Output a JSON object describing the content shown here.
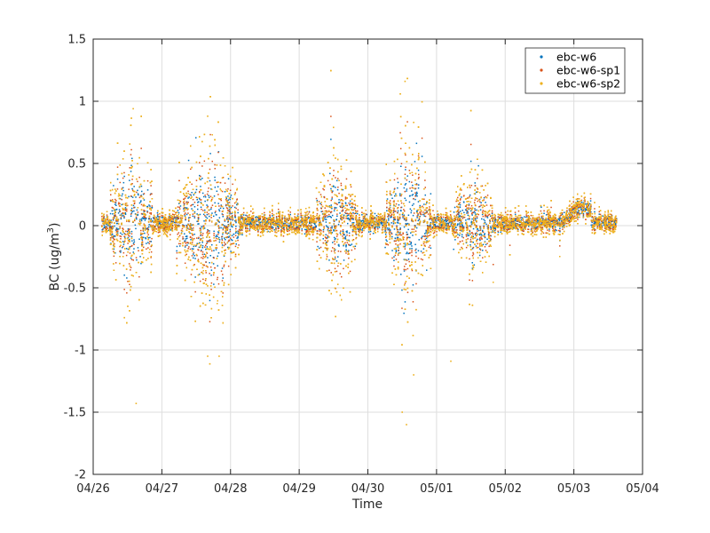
{
  "chart_data": {
    "type": "scatter",
    "xlabel": "Time",
    "ylabel": "BC (ug/m",
    "ylabel_sup": "3",
    "ylabel_close": ")",
    "xlim": [
      "2023-04-26",
      "2023-05-04"
    ],
    "ylim": [
      -2,
      1.5
    ],
    "x_ticks": [
      "2023-04-26",
      "2023-04-27",
      "2023-04-28",
      "2023-04-29",
      "2023-04-30",
      "2023-05-01",
      "2023-05-02",
      "2023-05-03",
      "2023-05-04"
    ],
    "x_tick_labels": [
      "04/26",
      "04/27",
      "04/28",
      "04/29",
      "04/30",
      "05/01",
      "05/02",
      "05/03",
      "05/04"
    ],
    "y_ticks": [
      -2,
      -1.5,
      -1,
      -0.5,
      0,
      0.5,
      1,
      1.5
    ],
    "y_tick_labels": [
      "-2",
      "-1.5",
      "-1",
      "-0.5",
      "0",
      "0.5",
      "1",
      "1.5"
    ],
    "grid": true,
    "legend_position": "top-right",
    "series": [
      {
        "name": "ebc-w6",
        "color": "#0072BD"
      },
      {
        "name": "ebc-w6-sp1",
        "color": "#D95319"
      },
      {
        "name": "ebc-w6-sp2",
        "color": "#EDB120"
      }
    ],
    "data_range": {
      "start": "2023-04-26 03:00",
      "end": "2023-05-03 15:00"
    },
    "baseline_y": 0.02,
    "noisy_periods": [
      {
        "start": "2023-04-26 06:00",
        "end": "2023-04-26 21:00",
        "spread": 0.38
      },
      {
        "start": "2023-04-27 05:00",
        "end": "2023-04-28 03:00",
        "spread": 0.42
      },
      {
        "start": "2023-04-29 06:00",
        "end": "2023-04-29 20:00",
        "spread": 0.36
      },
      {
        "start": "2023-04-30 06:00",
        "end": "2023-04-30 22:00",
        "spread": 0.44
      },
      {
        "start": "2023-05-01 06:00",
        "end": "2023-05-01 20:00",
        "spread": 0.26
      }
    ],
    "elevated_periods": [
      {
        "start": "2023-05-02 18:00",
        "end": "2023-05-03 06:00",
        "y": 0.13
      }
    ],
    "outliers": [
      {
        "x": "2023-04-30 13:00",
        "y": 1.16
      },
      {
        "x": "2023-04-26 14:00",
        "y": 0.94
      },
      {
        "x": "2023-04-27 16:00",
        "y": 0.88
      },
      {
        "x": "2023-04-29 12:00",
        "y": 0.79
      },
      {
        "x": "2023-04-30 16:00",
        "y": 0.83
      },
      {
        "x": "2023-04-26 15:00",
        "y": -1.43
      },
      {
        "x": "2023-04-30 12:00",
        "y": -1.5
      },
      {
        "x": "2023-04-30 13:30",
        "y": -1.6
      },
      {
        "x": "2023-04-30 16:00",
        "y": -1.2
      },
      {
        "x": "2023-05-01 05:00",
        "y": -1.09
      },
      {
        "x": "2023-04-27 16:00",
        "y": -1.05
      },
      {
        "x": "2023-04-27 20:00",
        "y": -1.05
      }
    ]
  }
}
